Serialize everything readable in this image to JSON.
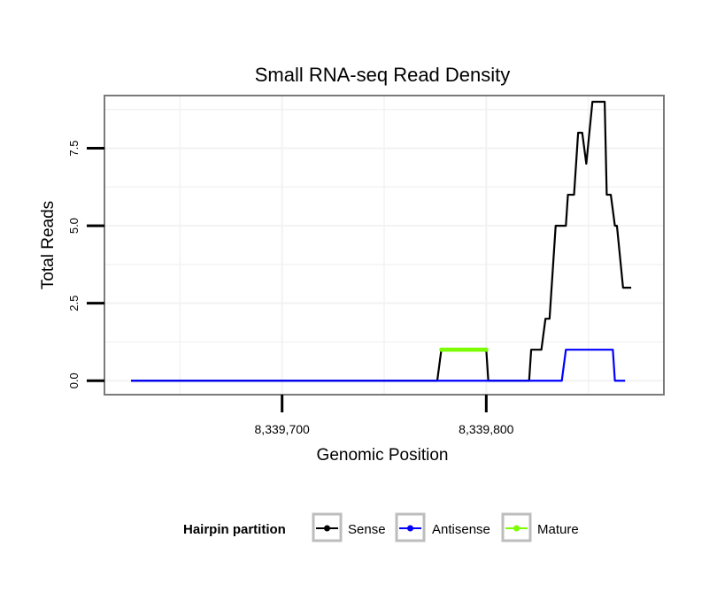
{
  "chart_data": {
    "type": "line",
    "title": "Small RNA-seq Read Density",
    "xlabel": "Genomic Position",
    "ylabel": "Total Reads",
    "xlim": [
      8339613,
      8339887
    ],
    "ylim": [
      -0.45,
      9.2
    ],
    "x_ticks": [
      {
        "value": 8339700,
        "label": "8,339,700"
      },
      {
        "value": 8339800,
        "label": "8,339,800"
      }
    ],
    "y_ticks": [
      {
        "value": 0,
        "label": "0.0"
      },
      {
        "value": 2.5,
        "label": "2.5"
      },
      {
        "value": 5,
        "label": "5.0"
      },
      {
        "value": 7.5,
        "label": "7.5"
      }
    ],
    "grid": true,
    "legend": {
      "title": "Hairpin partition",
      "position": "bottom"
    },
    "series": [
      {
        "name": "Sense",
        "color": "#000000",
        "points": [
          [
            8339626,
            0
          ],
          [
            8339776,
            0
          ],
          [
            8339778,
            1
          ],
          [
            8339800,
            1
          ],
          [
            8339801,
            0
          ],
          [
            8339821,
            0
          ],
          [
            8339822,
            1
          ],
          [
            8339827,
            1
          ],
          [
            8339829,
            2
          ],
          [
            8339831,
            2
          ],
          [
            8339833,
            4
          ],
          [
            8339834,
            5
          ],
          [
            8339839,
            5
          ],
          [
            8339840,
            6
          ],
          [
            8339843,
            6
          ],
          [
            8339845,
            8
          ],
          [
            8339847,
            8
          ],
          [
            8339849,
            7
          ],
          [
            8339852,
            9
          ],
          [
            8339858,
            9
          ],
          [
            8339859,
            6
          ],
          [
            8339861,
            6
          ],
          [
            8339863,
            5
          ],
          [
            8339864,
            5
          ],
          [
            8339867,
            3
          ],
          [
            8339871,
            3
          ]
        ]
      },
      {
        "name": "Antisense",
        "color": "#0000ff",
        "points": [
          [
            8339626,
            0
          ],
          [
            8339837,
            0
          ],
          [
            8339839,
            1
          ],
          [
            8339862,
            1
          ],
          [
            8339863,
            0
          ],
          [
            8339868,
            0
          ]
        ]
      },
      {
        "name": "Mature",
        "color": "#7cfc00",
        "points": [
          [
            8339778,
            1
          ],
          [
            8339779,
            1
          ],
          [
            8339780,
            1
          ],
          [
            8339781,
            1
          ],
          [
            8339782,
            1
          ],
          [
            8339783,
            1
          ],
          [
            8339784,
            1
          ],
          [
            8339785,
            1
          ],
          [
            8339786,
            1
          ],
          [
            8339787,
            1
          ],
          [
            8339788,
            1
          ],
          [
            8339789,
            1
          ],
          [
            8339790,
            1
          ],
          [
            8339791,
            1
          ],
          [
            8339792,
            1
          ],
          [
            8339793,
            1
          ],
          [
            8339794,
            1
          ],
          [
            8339795,
            1
          ],
          [
            8339796,
            1
          ],
          [
            8339797,
            1
          ],
          [
            8339798,
            1
          ],
          [
            8339799,
            1
          ],
          [
            8339800,
            1
          ]
        ]
      }
    ]
  }
}
